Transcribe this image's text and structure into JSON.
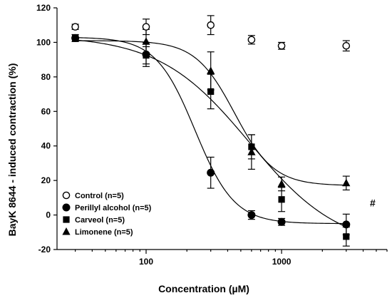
{
  "chart_data": {
    "type": "scatter",
    "x_scale": "log",
    "xlabel_prefix": "Concentration (",
    "xlabel_mu": "µ",
    "xlabel_suffix": "M)",
    "ylabel": "BayK 8644 - induced contraction (%)",
    "xlim": [
      22,
      6000
    ],
    "ylim": [
      -20,
      120
    ],
    "x_ticks": [
      100,
      1000
    ],
    "x_tick_labels": [
      "100",
      "1000"
    ],
    "y_ticks": [
      -20,
      0,
      20,
      40,
      60,
      80,
      100,
      120
    ],
    "y_tick_labels": [
      "-20",
      "0",
      "20",
      "40",
      "60",
      "80",
      "100",
      "120"
    ],
    "grid": false,
    "legend_position": "bottom-left",
    "annotation": {
      "text": "#",
      "x": 4700,
      "y": 5
    },
    "series": [
      {
        "name": "Control (n=5)",
        "marker": "circle-open",
        "x": [
          30,
          100,
          300,
          600,
          1000,
          3000
        ],
        "y": [
          109,
          109,
          110,
          101.5,
          98,
          98
        ],
        "err": [
          1.5,
          4.5,
          5.5,
          2.5,
          2,
          3
        ],
        "fit": null
      },
      {
        "name": "Perillyl alcohol (n=5)",
        "marker": "circle-filled",
        "x": [
          30,
          100,
          300,
          600,
          1000,
          3000
        ],
        "y": [
          102.5,
          93,
          24.5,
          0,
          -4,
          -5.5
        ],
        "err": [
          2,
          7,
          9,
          2.5,
          2,
          6
        ],
        "fit": {
          "top": 103,
          "bottom": -5,
          "ec50": 230,
          "hill": 3.0
        }
      },
      {
        "name": "Carveol (n=5)",
        "marker": "square-filled",
        "x": [
          30,
          100,
          300,
          600,
          1000,
          3000
        ],
        "y": [
          102.5,
          92.5,
          71.5,
          39.5,
          9,
          -12.5
        ],
        "err": [
          2,
          5,
          10,
          7,
          7,
          5.5
        ],
        "fit": {
          "top": 104,
          "bottom": -20,
          "ec50": 580,
          "hill": 1.3
        }
      },
      {
        "name": "Limonene (n=5)",
        "marker": "triangle-filled",
        "x": [
          100,
          300,
          600,
          1000,
          3000
        ],
        "y": [
          100.5,
          83.5,
          36.5,
          18,
          18.5
        ],
        "err": [
          7,
          11,
          10,
          4,
          4
        ],
        "fit": {
          "top": 101,
          "bottom": 17,
          "ec50": 450,
          "hill": 3.0
        }
      }
    ]
  }
}
